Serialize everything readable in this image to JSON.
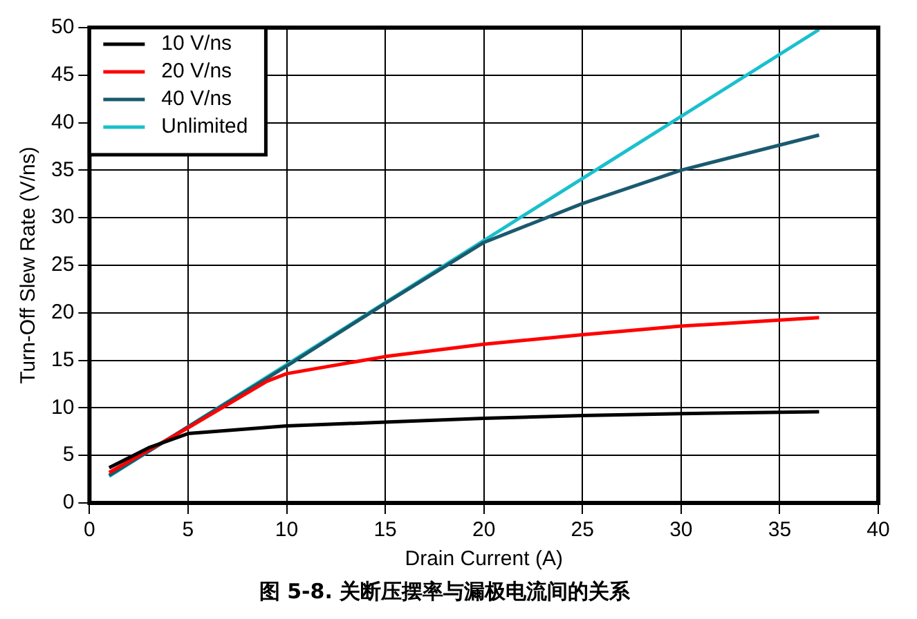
{
  "chart_data": {
    "type": "line",
    "title": "图 5-8. 关断压摆率与漏极电流间的关系",
    "xlabel": "Drain Current (A)",
    "ylabel": "Turn-Off Slew Rate (V/ns)",
    "xlim": [
      0,
      40
    ],
    "xticks": [
      0,
      5,
      10,
      15,
      20,
      25,
      30,
      35,
      40
    ],
    "ylim": [
      0,
      50
    ],
    "yticks": [
      0,
      5,
      10,
      15,
      20,
      25,
      30,
      35,
      40,
      45,
      50
    ],
    "grid": true,
    "legend": "top left",
    "marker": "none",
    "line_style": "solid",
    "series": [
      {
        "name": "10 V/ns",
        "color": "#000000",
        "x": [
          1,
          3,
          5,
          10,
          15,
          20,
          25,
          30,
          37
        ],
        "values": [
          3.7,
          5.8,
          7.3,
          8.1,
          8.5,
          8.9,
          9.2,
          9.4,
          9.6
        ]
      },
      {
        "name": "20 V/ns",
        "color": "#ff0000",
        "x": [
          1,
          5,
          9,
          10,
          15,
          20,
          25,
          30,
          37
        ],
        "values": [
          3.2,
          7.9,
          12.8,
          13.6,
          15.4,
          16.7,
          17.7,
          18.6,
          19.5
        ]
      },
      {
        "name": "40 V/ns",
        "color": "#1a5a6e",
        "x": [
          1,
          5,
          10,
          15,
          20,
          25,
          30,
          37
        ],
        "values": [
          2.9,
          8,
          14.4,
          21,
          27.4,
          31.5,
          35,
          38.7
        ]
      },
      {
        "name": "Unlimited",
        "color": "#19c0cc",
        "x": [
          1,
          37
        ],
        "values": [
          2.8,
          49.8
        ]
      }
    ]
  }
}
